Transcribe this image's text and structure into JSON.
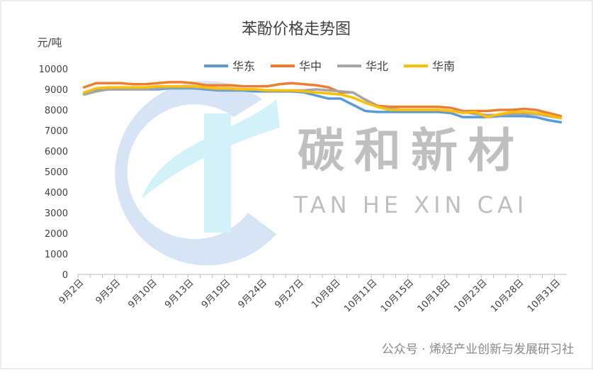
{
  "chart_data": {
    "type": "line",
    "title": "苯酚价格走势图",
    "y_label": "元/吨",
    "categories": [
      "9月2日",
      null,
      null,
      "9月5日",
      null,
      null,
      "9月10日",
      null,
      null,
      "9月13日",
      null,
      null,
      "9月19日",
      null,
      null,
      "9月24日",
      null,
      null,
      "9月27日",
      null,
      null,
      "10月8日",
      null,
      null,
      "10月11日",
      null,
      null,
      "10月15日",
      null,
      null,
      "10月18日",
      null,
      null,
      "10月23日",
      null,
      null,
      "10月28日",
      null,
      null,
      "10月31日"
    ],
    "series": [
      {
        "name": "华东",
        "color": "#5b9bd5",
        "values": [
          8800,
          8950,
          9000,
          9000,
          9000,
          9000,
          9000,
          9050,
          9050,
          9050,
          9000,
          8950,
          8950,
          8950,
          8900,
          8900,
          8900,
          8900,
          8850,
          8700,
          8550,
          8550,
          8250,
          7950,
          7900,
          7900,
          7900,
          7900,
          7900,
          7900,
          7850,
          7650,
          7650,
          7650,
          7700,
          7700,
          7700,
          7650,
          7500,
          7400
        ]
      },
      {
        "name": "华中",
        "color": "#ed7d31",
        "values": [
          9100,
          9300,
          9300,
          9300,
          9250,
          9250,
          9300,
          9350,
          9350,
          9300,
          9200,
          9200,
          9200,
          9150,
          9150,
          9150,
          9250,
          9300,
          9250,
          9200,
          9100,
          8850,
          8850,
          8500,
          8200,
          8150,
          8150,
          8150,
          8150,
          8150,
          8100,
          7950,
          7950,
          7950,
          8000,
          8000,
          8050,
          8000,
          7850,
          7700
        ]
      },
      {
        "name": "华北",
        "color": "#a5a5a5",
        "values": [
          8750,
          8900,
          9000,
          9000,
          9000,
          9000,
          9050,
          9100,
          9100,
          9100,
          9050,
          9000,
          9000,
          9000,
          9000,
          8950,
          8950,
          8950,
          8950,
          9000,
          8950,
          8900,
          8850,
          8500,
          8150,
          8050,
          8000,
          8000,
          8000,
          8000,
          7950,
          7900,
          7800,
          7750,
          7750,
          7800,
          7800,
          7800,
          7700,
          7600
        ]
      },
      {
        "name": "华南",
        "color": "#ffc000",
        "values": [
          8850,
          9050,
          9100,
          9100,
          9100,
          9100,
          9150,
          9150,
          9150,
          9150,
          9100,
          9050,
          9050,
          9000,
          9000,
          8950,
          8950,
          8950,
          8900,
          8850,
          8800,
          8750,
          8600,
          8350,
          8150,
          8000,
          8000,
          8000,
          8000,
          8000,
          7950,
          7850,
          7900,
          7650,
          7800,
          7900,
          7900,
          7850,
          7750,
          7600
        ]
      }
    ],
    "ylim": [
      0,
      10000
    ],
    "yticks": [
      0,
      1000,
      2000,
      3000,
      4000,
      5000,
      6000,
      7000,
      8000,
      9000,
      10000
    ],
    "legend": "top",
    "watermark": {
      "title": "碳和新材",
      "subtitle": "TAN HE XIN CAI"
    },
    "footer": "公众号 · 烯烃产业创新与发展研习社"
  }
}
